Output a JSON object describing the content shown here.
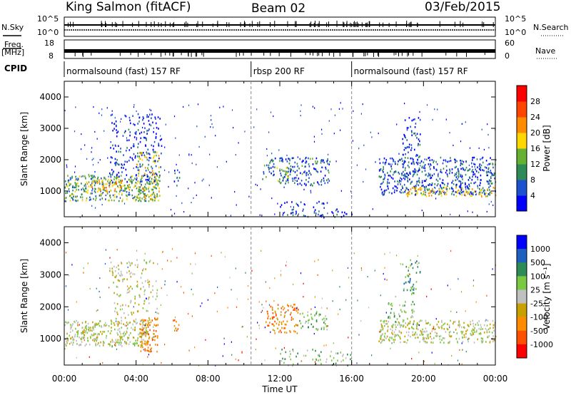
{
  "header": {
    "station": "King Salmon (fitACF)",
    "beam": "Beam 02",
    "date": "03/Feb/2015"
  },
  "strips": {
    "nsky_label": "N.Sky",
    "nsearch_label": "N.Search",
    "freq_label": "Freq.",
    "freq_unit": "[MHz]",
    "nave_label": "Nave",
    "cpid_label": "CPID",
    "nsky_ticks": [
      "10^5",
      "10^0"
    ],
    "nsearch_ticks": [
      "10^5",
      "10^0"
    ],
    "freq_ticks": [
      "18",
      "8"
    ],
    "nave_ticks": [
      "60",
      "0"
    ]
  },
  "cpid": {
    "segments": [
      {
        "label": "normalsound (fast) 157 RF",
        "start_hour": 0,
        "end_hour": 10.4
      },
      {
        "label": "rbsp 200 RF",
        "start_hour": 10.4,
        "end_hour": 16
      },
      {
        "label": "normalsound (fast) 157 RF",
        "start_hour": 16,
        "end_hour": 24
      }
    ]
  },
  "x_axis": {
    "label": "Time UT",
    "tick_labels": [
      "00:00",
      "04:00",
      "08:00",
      "12:00",
      "16:00",
      "20:00",
      "00:00"
    ],
    "tick_hours": [
      0,
      4,
      8,
      12,
      16,
      20,
      24
    ],
    "range_hours": [
      0,
      24
    ]
  },
  "colors": {
    "power": [
      "#0000ff",
      "#1d4fd1",
      "#2e8b57",
      "#66b032",
      "#ffd700",
      "#ff8c00",
      "#ff4500",
      "#ff0000"
    ],
    "velocity": [
      "#0000ff",
      "#1f5fbf",
      "#2e8b57",
      "#7ac943",
      "#c0c0c0",
      "#c8a000",
      "#ff8c00",
      "#ff5000",
      "#ff0000"
    ]
  },
  "chart_data": [
    {
      "type": "heatmap",
      "name": "power",
      "xlabel": "",
      "ylabel": "Slant Range [km]",
      "xlim": [
        0,
        24
      ],
      "ylim": [
        180,
        4500
      ],
      "y_ticks": [
        1000,
        2000,
        3000,
        4000
      ],
      "colorbar": {
        "label": "Power [dB]",
        "ticks": [
          4,
          8,
          12,
          16,
          20,
          24,
          28
        ],
        "range": [
          0,
          32
        ]
      },
      "regions": [
        {
          "t0": 0.0,
          "t1": 5.3,
          "r0": 700,
          "r1": 1550,
          "level": 14,
          "density": 0.85
        },
        {
          "t0": 1.2,
          "t1": 3.6,
          "r0": 1000,
          "r1": 1400,
          "level": 22,
          "density": 0.6
        },
        {
          "t0": 2.5,
          "t1": 5.4,
          "r0": 1300,
          "r1": 3500,
          "level": 6,
          "density": 0.35
        },
        {
          "t0": 4.0,
          "t1": 5.3,
          "r0": 700,
          "r1": 2300,
          "level": 18,
          "density": 0.5
        },
        {
          "t0": 6.0,
          "t1": 6.4,
          "r0": 1200,
          "r1": 1700,
          "level": 6,
          "density": 0.5
        },
        {
          "t0": 11.0,
          "t1": 14.8,
          "r0": 1200,
          "r1": 2100,
          "level": 9,
          "density": 0.55
        },
        {
          "t0": 11.8,
          "t1": 12.6,
          "r0": 1300,
          "r1": 1800,
          "level": 16,
          "density": 0.5
        },
        {
          "t0": 12.0,
          "t1": 16.0,
          "r0": 180,
          "r1": 700,
          "level": 6,
          "density": 0.3
        },
        {
          "t0": 17.5,
          "t1": 24.0,
          "r0": 900,
          "r1": 2100,
          "level": 8,
          "density": 0.7
        },
        {
          "t0": 19.0,
          "t1": 24.0,
          "r0": 850,
          "r1": 1150,
          "level": 20,
          "density": 0.7
        },
        {
          "t0": 18.8,
          "t1": 19.8,
          "r0": 1500,
          "r1": 3500,
          "level": 6,
          "density": 0.4
        }
      ]
    },
    {
      "type": "heatmap",
      "name": "velocity",
      "xlabel": "Time UT",
      "ylabel": "Slant Range [km]",
      "xlim": [
        0,
        24
      ],
      "ylim": [
        180,
        4500
      ],
      "y_ticks": [
        1000,
        2000,
        3000,
        4000
      ],
      "colorbar": {
        "label": "Velocity [m s⁻¹]",
        "ticks": [
          "1000",
          "500",
          "100",
          "25",
          "-25",
          "-100",
          "-500",
          "-1000"
        ]
      },
      "regions": [
        {
          "t0": 0.0,
          "t1": 4.6,
          "r0": 800,
          "r1": 1600,
          "level": 4,
          "density": 0.85
        },
        {
          "t0": 4.2,
          "t1": 5.2,
          "r0": 600,
          "r1": 1700,
          "level": 6,
          "density": 0.8
        },
        {
          "t0": 2.5,
          "t1": 5.2,
          "r0": 1500,
          "r1": 3500,
          "level": 4,
          "density": 0.3
        },
        {
          "t0": 6.0,
          "t1": 6.4,
          "r0": 1200,
          "r1": 1700,
          "level": 6,
          "density": 0.5
        },
        {
          "t0": 11.2,
          "t1": 13.0,
          "r0": 1200,
          "r1": 2100,
          "level": 6,
          "density": 0.6
        },
        {
          "t0": 13.0,
          "t1": 14.6,
          "r0": 1300,
          "r1": 1900,
          "level": 3,
          "density": 0.55
        },
        {
          "t0": 12.0,
          "t1": 16.0,
          "r0": 180,
          "r1": 700,
          "level": 3,
          "density": 0.3
        },
        {
          "t0": 17.5,
          "t1": 24.0,
          "r0": 900,
          "r1": 1600,
          "level": 4,
          "density": 0.75
        },
        {
          "t0": 18.8,
          "t1": 19.8,
          "r0": 2400,
          "r1": 3500,
          "level": 2,
          "density": 0.4
        },
        {
          "t0": 18.0,
          "t1": 19.5,
          "r0": 1400,
          "r1": 2200,
          "level": 3,
          "density": 0.45
        }
      ]
    }
  ]
}
